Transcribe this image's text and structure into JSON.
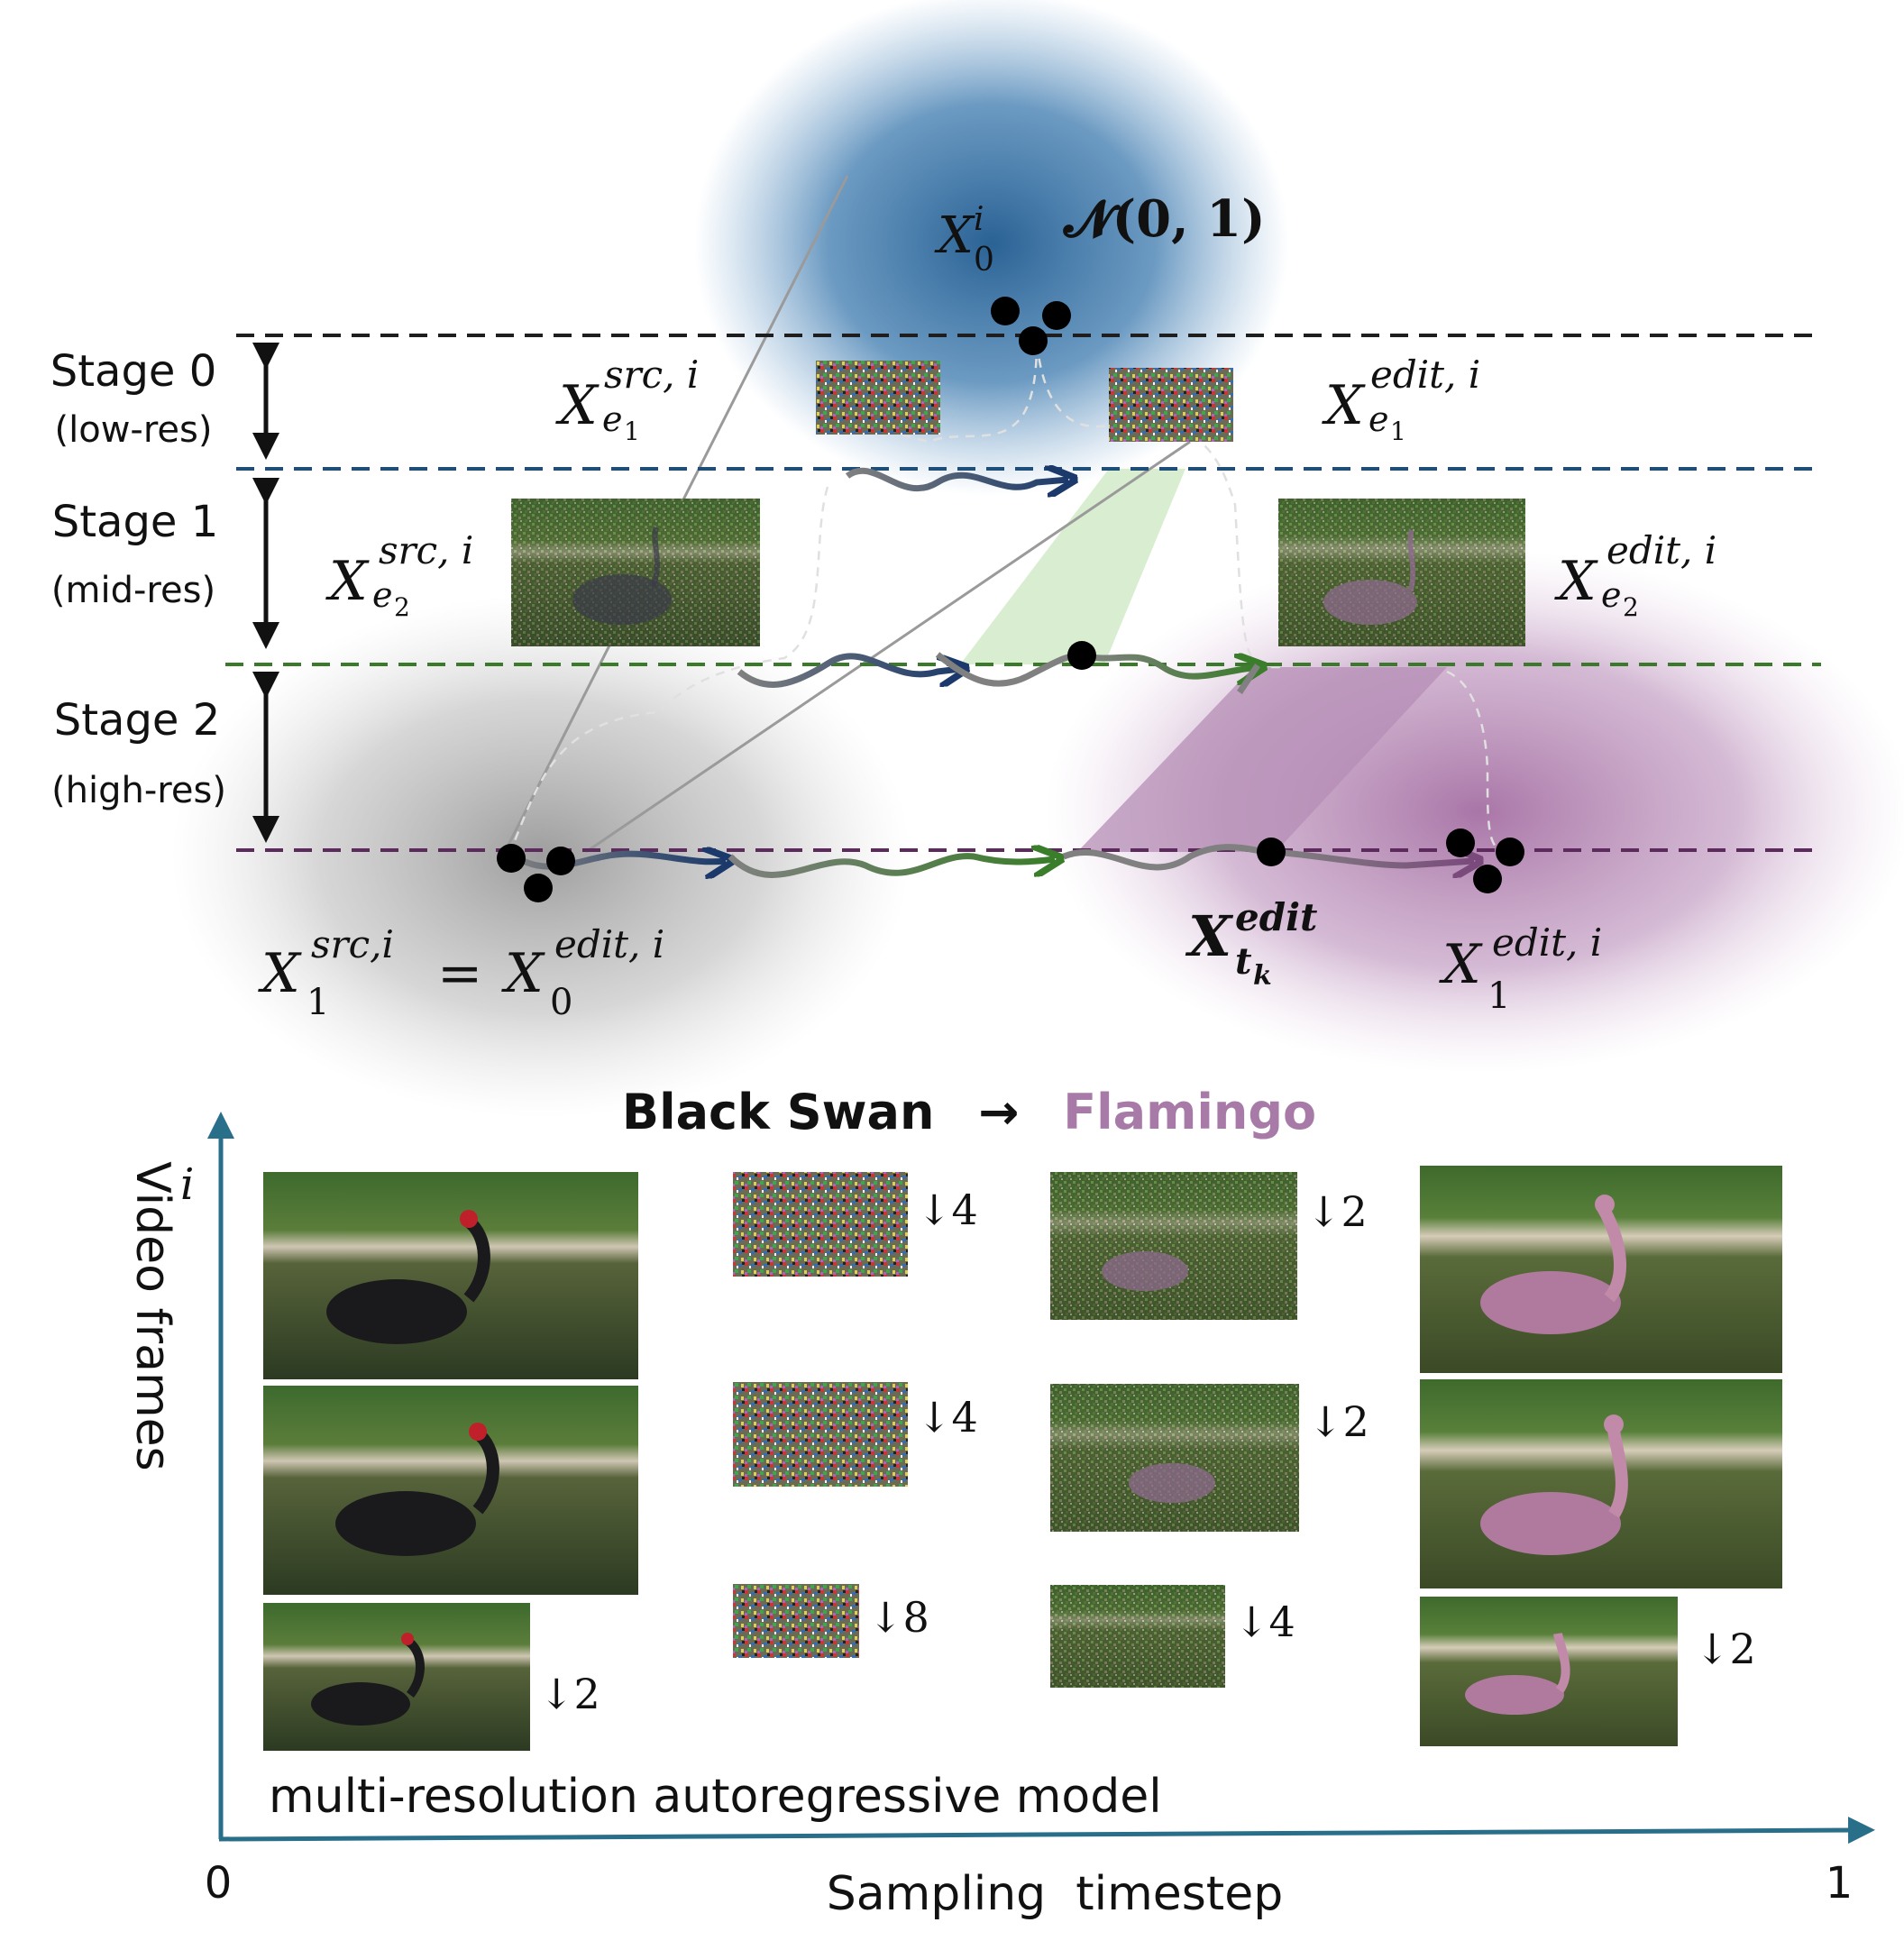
{
  "stages": [
    {
      "name": "Stage 0",
      "desc": "(low-res)"
    },
    {
      "name": "Stage 1",
      "desc": "(mid-res)"
    },
    {
      "name": "Stage 2",
      "desc": "(high-res)"
    }
  ],
  "math": {
    "x": "X",
    "n01": "𝓝(0, 1)",
    "x0i_sub": "0",
    "x0i_sup": "i",
    "src_sup": "src, i",
    "edit_sup": "edit, i",
    "e1": "e",
    "e1_idx": "1",
    "e2_idx": "2",
    "x1_src_sup": "src,i",
    "x1_sub": "1",
    "equals": "=",
    "x0_sub": "0",
    "tk_sup": "edit",
    "tk_sub": "t",
    "tk_subsub": "k"
  },
  "title": {
    "source": "Black Swan",
    "arrow": "→",
    "target": "Flamingo"
  },
  "colors": {
    "stage0": "#1e1e1e",
    "stage1": "#1f4e79",
    "stage2": "#3b7a2a",
    "stage3": "#5c2a5c",
    "navy": "#1b3a6b",
    "green": "#3a7d2a",
    "purple": "#8a5a8c",
    "axis": "#2a6f8a",
    "flamingo": "#a77aa8"
  },
  "axis": {
    "y_label": "Video frames",
    "y_var": "i",
    "x_label": "Sampling  timestep",
    "x_start": "0",
    "x_end": "1",
    "caption": "multi-resolution autoregressive model"
  },
  "downsample": {
    "d4a": "↓4",
    "d4b": "↓4",
    "d8": "↓8",
    "d2a": "↓2",
    "d2b": "↓2",
    "d4c": "↓4",
    "d2c": "↓2",
    "d2d": "↓2"
  }
}
